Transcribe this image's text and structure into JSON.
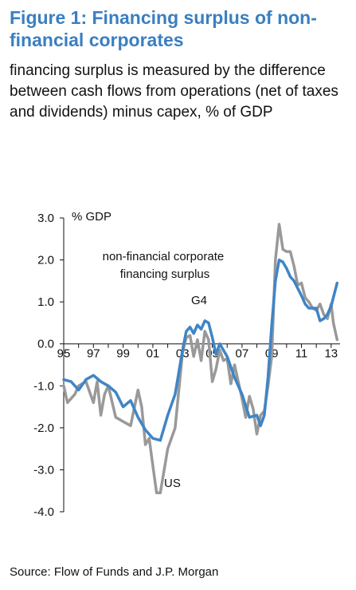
{
  "figure": {
    "title": "Figure 1: Financing surplus of non-financial corporates",
    "subtitle": "financing surplus is measured by the difference between cash flows from operations (net of taxes and dividends) minus capex, % of GDP",
    "source": "Source: Flow of Funds and J.P. Morgan"
  },
  "chart_data": {
    "type": "line",
    "ylabel": "% GDP",
    "annotation": "non-financial corporate financing surplus",
    "ylim": [
      -4.0,
      3.0
    ],
    "xlim": [
      1995,
      2013.6
    ],
    "yticks": [
      3.0,
      2.0,
      1.0,
      0.0,
      -1.0,
      -2.0,
      -3.0,
      -4.0
    ],
    "ytick_labels": [
      "3.0",
      "2.0",
      "1.0",
      "0.0",
      "-1.0",
      "-2.0",
      "-3.0",
      "-4.0"
    ],
    "xticks": [
      1995,
      1997,
      1999,
      2001,
      2003,
      2005,
      2007,
      2009,
      2011,
      2013
    ],
    "xtick_labels": [
      "95",
      "97",
      "99",
      "01",
      "03",
      "05",
      "07",
      "09",
      "11",
      "13"
    ],
    "grid": false,
    "colors": {
      "G4": "#3f85c6",
      "US": "#999999",
      "title": "#3a7fc1"
    },
    "series": [
      {
        "name": "G4",
        "x": [
          1995,
          1995.5,
          1996,
          1996.5,
          1997,
          1997.5,
          1998,
          1998.5,
          1999,
          1999.5,
          2000,
          2000.5,
          2001,
          2001.5,
          2002,
          2002.5,
          2003,
          2003.25,
          2003.5,
          2003.75,
          2004,
          2004.25,
          2004.5,
          2004.75,
          2005,
          2005.25,
          2005.5,
          2006,
          2006.5,
          2007,
          2007.5,
          2008,
          2008.25,
          2008.5,
          2008.75,
          2009,
          2009.25,
          2009.5,
          2009.75,
          2010,
          2010.25,
          2010.5,
          2011,
          2011.25,
          2011.5,
          2012,
          2012.25,
          2012.5,
          2012.75,
          2013,
          2013.4
        ],
        "values": [
          -0.85,
          -0.9,
          -1.1,
          -0.85,
          -0.75,
          -0.9,
          -1.0,
          -1.15,
          -1.5,
          -1.35,
          -1.75,
          -2.05,
          -2.25,
          -2.3,
          -1.7,
          -1.2,
          -0.15,
          0.3,
          0.4,
          0.25,
          0.45,
          0.35,
          0.55,
          0.5,
          0.15,
          -0.25,
          0.0,
          -0.3,
          -0.8,
          -1.2,
          -1.75,
          -1.7,
          -1.95,
          -1.7,
          -0.8,
          0.45,
          1.5,
          2.0,
          1.95,
          1.8,
          1.6,
          1.5,
          1.15,
          0.95,
          0.85,
          0.85,
          0.55,
          0.6,
          0.7,
          0.9,
          1.45
        ]
      },
      {
        "name": "US",
        "x": [
          1995,
          1995.25,
          1995.75,
          1996,
          1996.5,
          1997,
          1997.25,
          1997.5,
          1997.75,
          1998,
          1998.5,
          1999,
          1999.5,
          2000,
          2000.25,
          2000.5,
          2000.75,
          2001,
          2001.25,
          2001.5,
          2002,
          2002.5,
          2003,
          2003.25,
          2003.5,
          2003.75,
          2004,
          2004.25,
          2004.5,
          2004.75,
          2005,
          2005.25,
          2005.5,
          2005.75,
          2006,
          2006.25,
          2006.5,
          2007,
          2007.25,
          2007.5,
          2007.75,
          2008,
          2008.25,
          2008.5,
          2008.75,
          2009,
          2009.25,
          2009.5,
          2009.75,
          2010,
          2010.25,
          2010.5,
          2010.75,
          2011,
          2011.25,
          2011.5,
          2011.75,
          2012,
          2012.25,
          2012.5,
          2012.75,
          2013,
          2013.15,
          2013.4
        ],
        "values": [
          -1.0,
          -1.4,
          -1.2,
          -1.0,
          -0.9,
          -1.4,
          -0.9,
          -1.7,
          -1.2,
          -1.0,
          -1.75,
          -1.85,
          -1.95,
          -1.1,
          -1.5,
          -2.4,
          -2.25,
          -2.9,
          -3.55,
          -3.55,
          -2.5,
          -2.0,
          -0.2,
          0.15,
          0.2,
          -0.3,
          0.1,
          -0.4,
          0.3,
          0.1,
          -0.9,
          -0.6,
          -0.15,
          -0.4,
          -0.35,
          -0.95,
          -0.5,
          -1.3,
          -1.75,
          -1.25,
          -1.55,
          -2.15,
          -1.7,
          -1.6,
          -1.0,
          -0.3,
          2.0,
          2.85,
          2.25,
          2.2,
          2.2,
          1.85,
          1.4,
          1.45,
          1.1,
          1.0,
          0.85,
          0.8,
          0.95,
          0.7,
          0.6,
          0.95,
          0.5,
          0.1
        ]
      }
    ],
    "series_labels": [
      "G4",
      "US"
    ]
  }
}
